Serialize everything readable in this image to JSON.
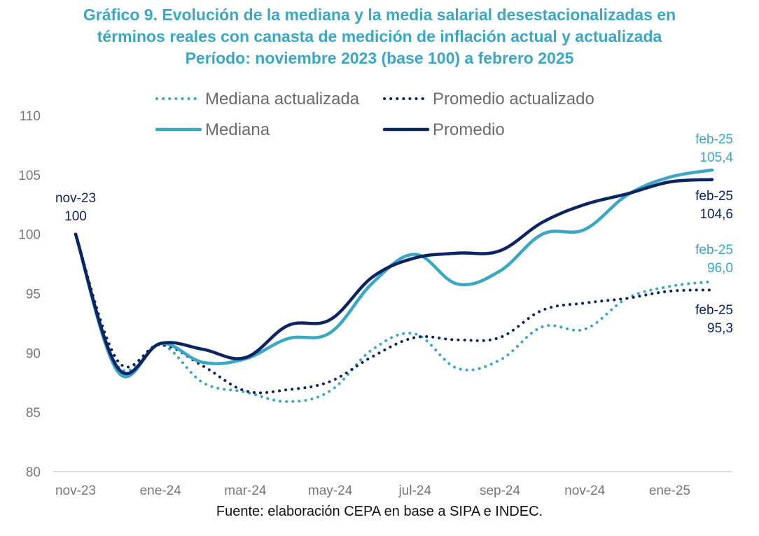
{
  "chart_data": {
    "type": "line",
    "title_lines": [
      "Gráfico 9. Evolución de la mediana y la media salarial desestacionalizadas en",
      "términos reales con canasta de medición de inflación actual y actualizada",
      "Período: noviembre 2023 (base 100) a febrero 2025"
    ],
    "x": [
      "nov-23",
      "dic-23",
      "ene-24",
      "feb-24",
      "mar-24",
      "abr-24",
      "may-24",
      "jun-24",
      "jul-24",
      "ago-24",
      "sep-24",
      "oct-24",
      "nov-24",
      "dic-24",
      "ene-25",
      "feb-25"
    ],
    "xticks": [
      "nov-23",
      "ene-24",
      "mar-24",
      "may-24",
      "jul-24",
      "sep-24",
      "nov-24",
      "ene-25"
    ],
    "ylim": [
      80,
      110
    ],
    "yticks": [
      80,
      85,
      90,
      95,
      100,
      105,
      110
    ],
    "series": [
      {
        "name": "Mediana actualizada",
        "color": "#3aa7c4",
        "dash": "dotted",
        "values": [
          100,
          88.9,
          90.7,
          87.5,
          86.7,
          85.9,
          86.8,
          90.3,
          91.6,
          88.7,
          89.4,
          92.2,
          92.0,
          94.6,
          95.6,
          96.0
        ]
      },
      {
        "name": "Promedio actualizado",
        "color": "#0c2461",
        "dash": "dotted",
        "values": [
          100,
          89.3,
          90.7,
          88.9,
          86.8,
          86.9,
          87.6,
          89.7,
          91.3,
          91.1,
          91.3,
          93.6,
          94.2,
          94.6,
          95.2,
          95.3
        ]
      },
      {
        "name": "Mediana",
        "color": "#3aa7c4",
        "dash": "solid",
        "values": [
          100,
          88.4,
          90.8,
          89.2,
          89.5,
          91.2,
          91.7,
          95.9,
          98.3,
          95.8,
          96.9,
          100.0,
          100.4,
          103.3,
          104.8,
          105.4
        ]
      },
      {
        "name": "Promedio",
        "color": "#0c2461",
        "dash": "solid",
        "values": [
          100,
          88.7,
          90.8,
          90.3,
          89.6,
          92.3,
          92.8,
          96.4,
          98.0,
          98.4,
          98.6,
          101.0,
          102.5,
          103.4,
          104.4,
          104.6
        ]
      }
    ],
    "annotations": [
      {
        "label_lines": [
          "nov-23",
          "100"
        ],
        "color": "#0c2461",
        "at": "nov-23"
      },
      {
        "label_lines": [
          "feb-25",
          "105,4"
        ],
        "color": "#3aa7c4",
        "at": "feb-25"
      },
      {
        "label_lines": [
          "feb-25",
          "104,6"
        ],
        "color": "#0c2461",
        "at": "feb-25"
      },
      {
        "label_lines": [
          "feb-25",
          "96,0"
        ],
        "color": "#3aa7c4",
        "at": "feb-25"
      },
      {
        "label_lines": [
          "feb-25",
          "95,3"
        ],
        "color": "#0c2461",
        "at": "feb-25"
      }
    ],
    "legend": "top",
    "grid": false
  },
  "source": "Fuente: elaboración CEPA en base a SIPA e INDEC."
}
